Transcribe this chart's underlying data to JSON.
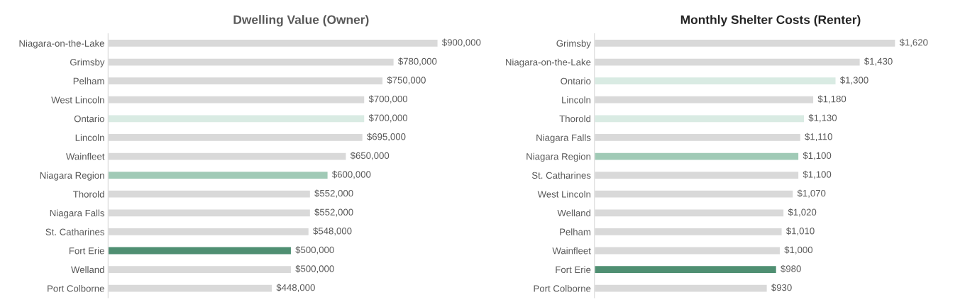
{
  "chart_data": [
    {
      "type": "bar",
      "orientation": "horizontal",
      "title": "Dwelling Value (Owner)",
      "tick_labels": "y",
      "grid": false,
      "legend": false,
      "categories": [
        "Niagara-on-the-Lake",
        "Grimsby",
        "Pelham",
        "West Lincoln",
        "Ontario",
        "Lincoln",
        "Wainfleet",
        "Niagara Region",
        "Thorold",
        "Niagara Falls",
        "St. Catharines",
        "Fort Erie",
        "Welland",
        "Port Colborne"
      ],
      "values": [
        900000,
        780000,
        750000,
        700000,
        700000,
        695000,
        650000,
        600000,
        552000,
        552000,
        548000,
        500000,
        500000,
        448000
      ],
      "colors": [
        "#d9d9d9",
        "#d9d9d9",
        "#d9d9d9",
        "#d9d9d9",
        "#d9ebe3",
        "#d9d9d9",
        "#d9d9d9",
        "#a0cab6",
        "#d9d9d9",
        "#d9d9d9",
        "#d9d9d9",
        "#4f8f72",
        "#d9d9d9",
        "#d9d9d9"
      ],
      "value_labels": [
        "$900,000",
        "$780,000",
        "$750,000",
        "$700,000",
        "$700,000",
        "$695,000",
        "$650,000",
        "$600,000",
        "$552,000",
        "$552,000",
        "$548,000",
        "$500,000",
        "$500,000",
        "$448,000"
      ]
    },
    {
      "type": "bar",
      "orientation": "horizontal",
      "title": "Monthly Shelter Costs (Renter)",
      "tick_labels": "y",
      "grid": false,
      "legend": false,
      "categories": [
        "Grimsby",
        "Niagara-on-the-Lake",
        "Ontario",
        "Lincoln",
        "Thorold",
        "Niagara Falls",
        "Niagara Region",
        "St. Catharines",
        "West Lincoln",
        "Welland",
        "Pelham",
        "Wainfleet",
        "Fort Erie",
        "Port Colborne"
      ],
      "values": [
        1620,
        1430,
        1300,
        1180,
        1130,
        1110,
        1100,
        1100,
        1070,
        1020,
        1010,
        1000,
        980,
        930
      ],
      "colors": [
        "#d9d9d9",
        "#d9d9d9",
        "#d9ebe3",
        "#d9d9d9",
        "#d9ebe3",
        "#d9d9d9",
        "#a0cab6",
        "#d9d9d9",
        "#d9d9d9",
        "#d9d9d9",
        "#d9d9d9",
        "#d9d9d9",
        "#4f8f72",
        "#d9d9d9"
      ],
      "value_labels": [
        "$1,620",
        "$1,430",
        "$1,300",
        "$1,180",
        "$1,130",
        "$1,110",
        "$1,100",
        "$1,100",
        "$1,070",
        "$1,020",
        "$1,010",
        "$1,000",
        "$980",
        "$930"
      ]
    }
  ]
}
